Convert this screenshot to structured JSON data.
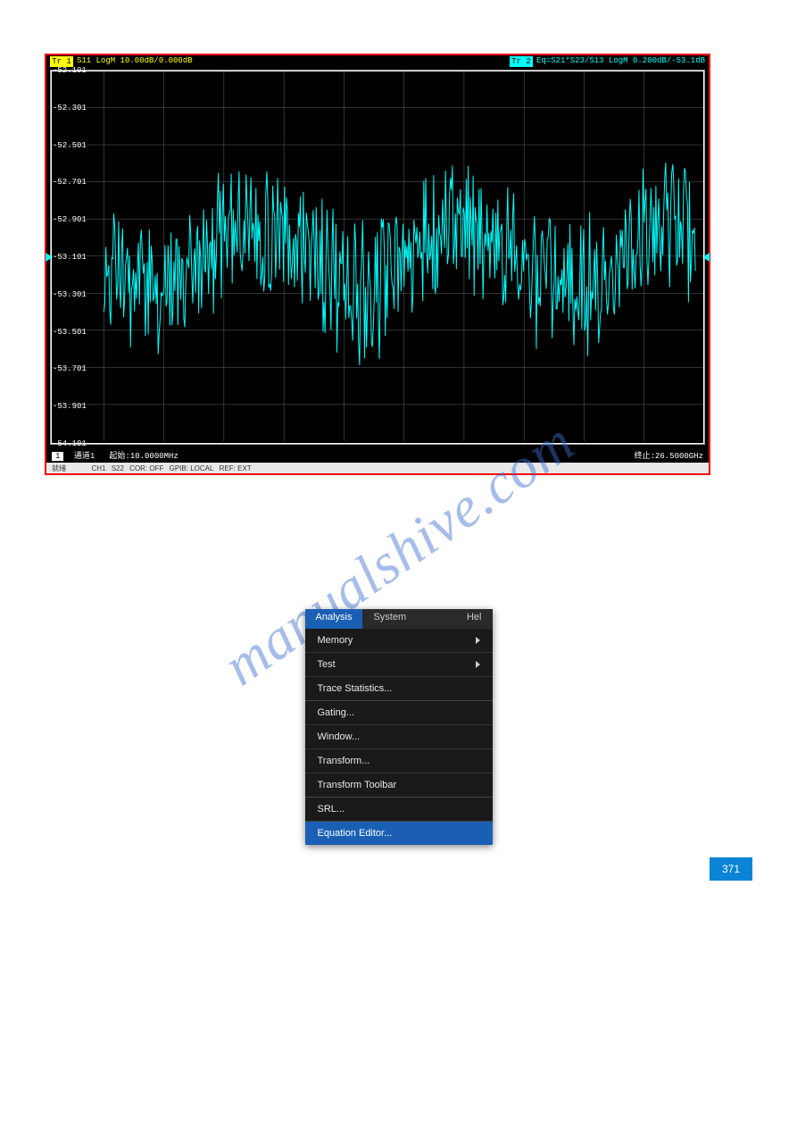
{
  "chart": {
    "type": "line",
    "border_color": "#ff0000",
    "background_color": "#000000",
    "grid_color": "#666666",
    "text_color": "#ffffff",
    "trace_color": "#00ffff",
    "trace1": {
      "label_bg": "#ffff00",
      "label": "Tr 1",
      "text": "S11 LogM 10.00dB/0.000dB",
      "text_color": "#ffff00"
    },
    "trace2": {
      "label_bg": "#00ffff",
      "label": "Tr 2",
      "text": "Eq=S21*S23/S13 LogM 0.200dB/-53.1dB",
      "text_color": "#00ffff"
    },
    "ylim": [
      -54.101,
      -52.101
    ],
    "ytick_step": 0.2,
    "ylabels": [
      "-52.101",
      "-52.301",
      "-52.501",
      "-52.701",
      "-52.901",
      "-53.101",
      "-53.301",
      "-53.501",
      "-53.701",
      "-53.901",
      "-54.101"
    ],
    "marker_y": -53.101,
    "marker_color": "#00ffff",
    "x_grid_divisions": 10,
    "footer": {
      "channel_badge": "1",
      "channel": "通道1",
      "start": "起始:10.0000MHz",
      "stop": "终止:26.5000GHz"
    },
    "status_bar": {
      "items": [
        "就绪",
        "CH1",
        "S22",
        "COR: OFF",
        "GPIB: LOCAL",
        "REF: EXT"
      ]
    }
  },
  "menu": {
    "bar": [
      {
        "label": "Analysis",
        "active": true
      },
      {
        "label": "System",
        "active": false
      },
      {
        "label": "Hel",
        "active": false
      }
    ],
    "items": [
      {
        "label": "Memory",
        "submenu": true,
        "sep": false
      },
      {
        "label": "Test",
        "submenu": true,
        "sep": false
      },
      {
        "label": "Trace Statistics...",
        "submenu": false,
        "sep": false
      },
      {
        "label": "Gating...",
        "submenu": false,
        "sep": true
      },
      {
        "label": "Window...",
        "submenu": false,
        "sep": false
      },
      {
        "label": "Transform...",
        "submenu": false,
        "sep": false
      },
      {
        "label": "Transform Toolbar",
        "submenu": false,
        "sep": false
      },
      {
        "label": "SRL...",
        "submenu": false,
        "sep": true
      },
      {
        "label": "Equation Editor...",
        "submenu": false,
        "sep": true,
        "highlight": true
      }
    ],
    "colors": {
      "bar_bg": "#2a2a2a",
      "active_bg": "#1a5fb4",
      "body_bg": "#1a1a1a",
      "item_color": "#e8e8e8",
      "divider": "#444444"
    }
  },
  "watermark": "manualshive.com",
  "page_number": "371"
}
